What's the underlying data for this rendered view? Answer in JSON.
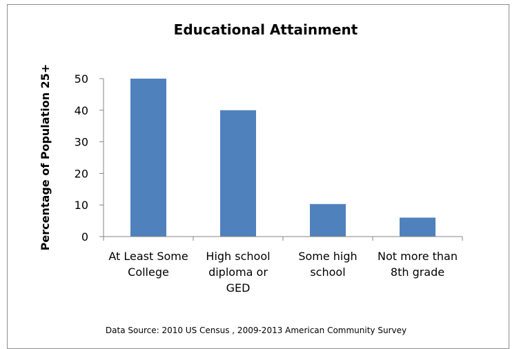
{
  "chart_data": {
    "type": "bar",
    "title": "Educational Attainment",
    "xlabel": "",
    "ylabel": "Percentage of Population 25+",
    "categories": [
      [
        "At Least Some",
        "College"
      ],
      [
        "High school",
        "diploma or",
        "GED"
      ],
      [
        "Some high",
        "school"
      ],
      [
        "Not more than",
        "8th grade"
      ]
    ],
    "values": [
      50,
      40,
      10.3,
      6
    ],
    "ylim": [
      0,
      50
    ],
    "yticks": [
      "0",
      "10",
      "20",
      "30",
      "40",
      "50"
    ],
    "grid": false,
    "legend": "none",
    "bar_color": "#4f81bd",
    "source": "Data Source: 2010 US Census , 2009-2013 American Community Survey"
  }
}
